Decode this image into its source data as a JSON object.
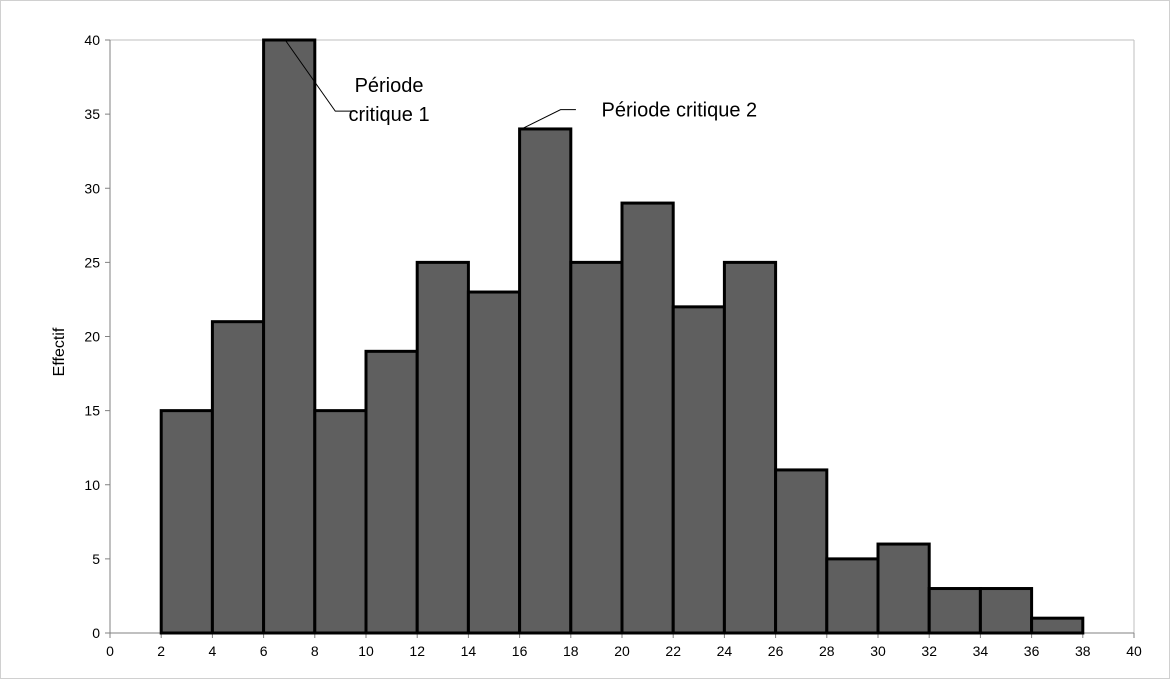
{
  "chart_data": {
    "type": "bar",
    "title": "",
    "xlabel": "",
    "ylabel": "Effectif",
    "bin_edges": [
      0,
      2,
      4,
      6,
      8,
      10,
      12,
      14,
      16,
      18,
      20,
      22,
      24,
      26,
      28,
      30,
      32,
      34,
      36,
      38
    ],
    "bin_width": 2,
    "values": [
      0,
      15,
      21,
      40,
      15,
      19,
      25,
      23,
      34,
      25,
      29,
      22,
      25,
      11,
      5,
      6,
      3,
      3,
      1
    ],
    "xlim": [
      0,
      40
    ],
    "ylim": [
      0,
      40
    ],
    "x_ticks": [
      0,
      2,
      4,
      6,
      8,
      10,
      12,
      14,
      16,
      18,
      20,
      22,
      24,
      26,
      28,
      30,
      32,
      34,
      36,
      38,
      40
    ],
    "y_ticks": [
      0,
      5,
      10,
      15,
      20,
      25,
      30,
      35,
      40
    ],
    "grid": false,
    "legend": "none",
    "bar_fill": "#5f5f5f",
    "bar_stroke": "#000000",
    "annotations": [
      {
        "lines": [
          "Période",
          "critique 1"
        ],
        "x": 7,
        "y": 40
      },
      {
        "lines": [
          "Période critique 2"
        ],
        "x": 16,
        "y": 34
      }
    ]
  }
}
